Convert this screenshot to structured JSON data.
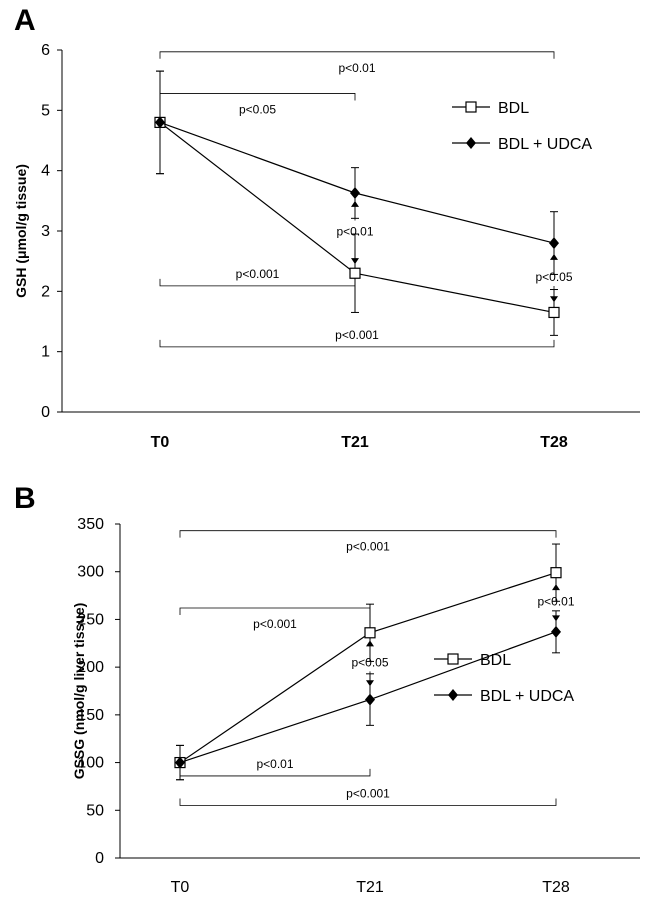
{
  "chart_data": [
    {
      "type": "line",
      "panel_label": "A",
      "categories": [
        "T0",
        "T21",
        "T28"
      ],
      "ylabel": "GSH (μmol/g tissue)",
      "xlabel": "",
      "ylim": [
        0,
        6
      ],
      "yticks": [
        "0",
        "1",
        "2",
        "3",
        "4",
        "5",
        "6"
      ],
      "series": [
        {
          "name": "BDL",
          "marker": "open-square",
          "values": [
            4.8,
            2.3,
            1.65
          ],
          "err": [
            0.85,
            0.65,
            0.38
          ]
        },
        {
          "name": "BDL + UDCA",
          "marker": "filled-diamond",
          "values": [
            4.8,
            3.63,
            2.8
          ],
          "err": [
            0.85,
            0.42,
            0.52
          ]
        }
      ],
      "legend_position": "top-right",
      "annotations": [
        {
          "text": "p<0.01",
          "from": "T0",
          "to": "T28",
          "kind": "bracket",
          "level": 5.97
        },
        {
          "text": "p<0.05",
          "from": "T0",
          "to": "T21",
          "kind": "bracket",
          "level": 5.28
        },
        {
          "text": "p<0.001",
          "from": "T0",
          "to": "T21",
          "kind": "bracket-below",
          "level": 2.09
        },
        {
          "text": "p<0.001",
          "from": "T0",
          "to": "T28",
          "kind": "bracket-below",
          "level": 1.08
        },
        {
          "text": "p<0.01",
          "at": "T21",
          "kind": "arrows",
          "low": 2.45,
          "high": 3.5
        },
        {
          "text": "p<0.05",
          "at": "T28",
          "kind": "arrows",
          "low": 1.82,
          "high": 2.62
        }
      ]
    },
    {
      "type": "line",
      "panel_label": "B",
      "categories": [
        "T0",
        "T21",
        "T28"
      ],
      "ylabel": "GSSG (nmol/g liver tissue)",
      "xlabel": "",
      "ylim": [
        0,
        350
      ],
      "yticks": [
        "0",
        "50",
        "100",
        "150",
        "200",
        "250",
        "300",
        "350"
      ],
      "series": [
        {
          "name": "BDL",
          "marker": "open-square",
          "values": [
            100,
            236,
            299
          ],
          "err": [
            18,
            30,
            30
          ]
        },
        {
          "name": "BDL + UDCA",
          "marker": "filled-diamond",
          "values": [
            100,
            166,
            237
          ],
          "err": [
            18,
            27,
            22
          ]
        }
      ],
      "legend_position": "center-right",
      "annotations": [
        {
          "text": "p<0.001",
          "from": "T0",
          "to": "T28",
          "kind": "bracket",
          "level": 343
        },
        {
          "text": "p<0.001",
          "from": "T0",
          "to": "T21",
          "kind": "bracket",
          "level": 262
        },
        {
          "text": "p<0.01",
          "from": "T0",
          "to": "T21",
          "kind": "bracket-below",
          "level": 86
        },
        {
          "text": "p<0.001",
          "from": "T0",
          "to": "T28",
          "kind": "bracket-below",
          "level": 55
        },
        {
          "text": "p<0.05",
          "at": "T21",
          "kind": "arrows",
          "low": 180,
          "high": 228
        },
        {
          "text": "p<0.01",
          "at": "T28",
          "kind": "arrows",
          "low": 248,
          "high": 287
        }
      ]
    }
  ]
}
